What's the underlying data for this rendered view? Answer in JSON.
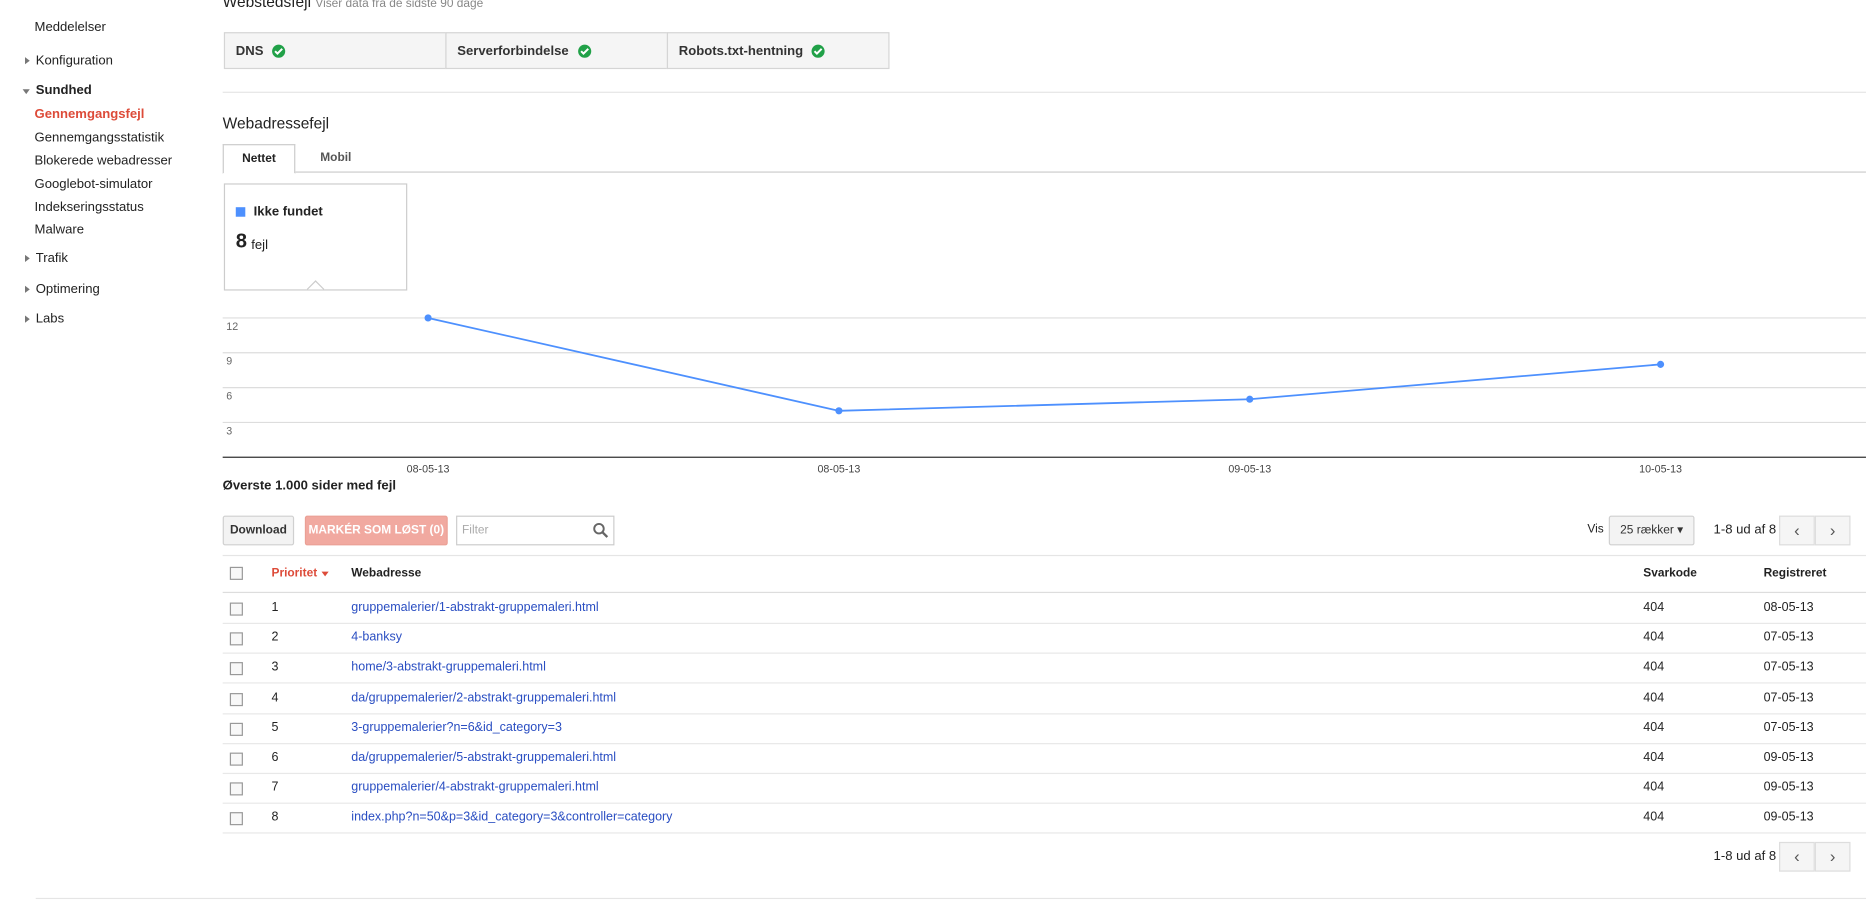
{
  "sidebar": {
    "items": [
      "Meddelelser",
      "Konfiguration",
      "Sundhed",
      "Gennemgangsfejl",
      "Gennemgangsstatistik",
      "Blokerede webadresser",
      "Googlebot-simulator",
      "Indekseringsstatus",
      "Malware",
      "Trafik",
      "Optimering",
      "Labs"
    ]
  },
  "header": {
    "title": "Webstedsfejl",
    "subtitle": "Viser data fra de sidste 90 dage"
  },
  "site_errors": [
    "DNS",
    "Serverforbindelse",
    "Robots.txt-hentning"
  ],
  "url_errors": {
    "title": "Webadressefejl",
    "tabs": [
      "Nettet",
      "Mobil"
    ],
    "legend": "Ikke fundet",
    "count": 8,
    "unit": "fejl"
  },
  "chart_data": {
    "type": "line",
    "categories": [
      "08-05-13",
      "08-05-13",
      "09-05-13",
      "10-05-13"
    ],
    "series": [
      {
        "name": "Ikke fundet",
        "color": "#4d90fe",
        "values": [
          12,
          4,
          5,
          8
        ]
      }
    ],
    "ylim": [
      0,
      12
    ],
    "yticks": [
      3,
      6,
      9,
      12
    ],
    "grid": true
  },
  "table_section": {
    "title": "Øverste 1.000 sider med fejl",
    "download": "Download",
    "mark_fixed": "MARKÉR SOM LØST (0)",
    "filter": "Filter",
    "show": "Vis",
    "rows_select": "25 rækker",
    "pager": "1-8 ud af 8"
  },
  "table": {
    "headers": [
      "Prioritet",
      "Webadresse",
      "Svarkode",
      "Registreret"
    ],
    "rows": [
      [
        1,
        "gruppemalerier/1-abstrakt-gruppemaleri.html",
        404,
        "08-05-13"
      ],
      [
        2,
        "4-banksy",
        404,
        "07-05-13"
      ],
      [
        3,
        "home/3-abstrakt-gruppemaleri.html",
        404,
        "07-05-13"
      ],
      [
        4,
        "da/gruppemalerier/2-abstrakt-gruppemaleri.html",
        404,
        "07-05-13"
      ],
      [
        5,
        "3-gruppemalerier?n=6&id_category=3",
        404,
        "07-05-13"
      ],
      [
        6,
        "da/gruppemalerier/5-abstrakt-gruppemaleri.html",
        404,
        "09-05-13"
      ],
      [
        7,
        "gruppemalerier/4-abstrakt-gruppemaleri.html",
        404,
        "09-05-13"
      ],
      [
        8,
        "index.php?n=50&p=3&id_category=3&controller=category",
        404,
        "09-05-13"
      ]
    ]
  }
}
